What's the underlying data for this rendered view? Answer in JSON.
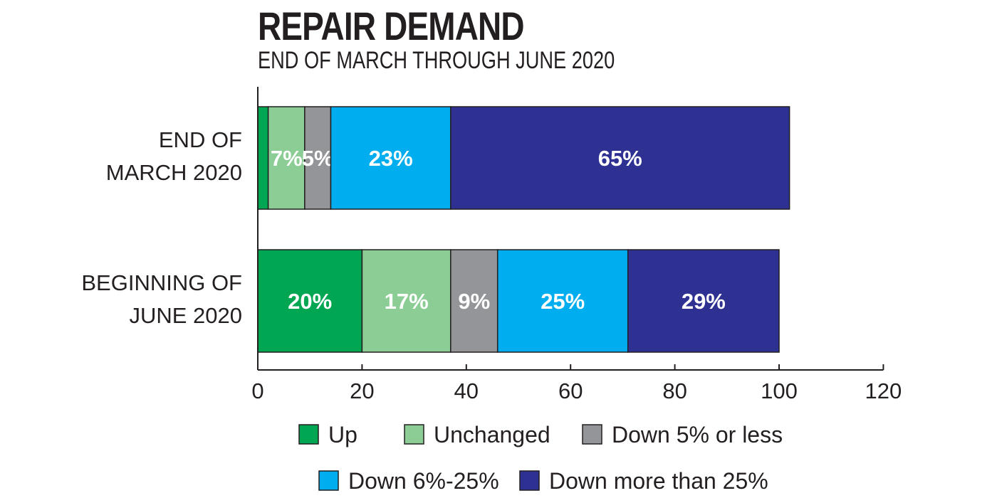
{
  "chart_data": {
    "type": "bar",
    "orientation": "horizontal",
    "stacked": true,
    "title": "REPAIR DEMAND",
    "subtitle": "END OF MARCH THROUGH JUNE 2020",
    "categories": [
      [
        "END OF",
        "MARCH 2020"
      ],
      [
        "BEGINNING OF",
        "JUNE 2020"
      ]
    ],
    "series": [
      {
        "name": "Up",
        "color": "#00a651",
        "values": [
          2,
          20
        ],
        "labels": [
          "",
          "20%"
        ]
      },
      {
        "name": "Unchanged",
        "color": "#8ccd96",
        "values": [
          7,
          17
        ],
        "labels": [
          "7%",
          "17%"
        ]
      },
      {
        "name": "Down 5% or less",
        "color": "#939598",
        "values": [
          5,
          9
        ],
        "labels": [
          "5%",
          "9%"
        ]
      },
      {
        "name": "Down 6%-25%",
        "color": "#00aeef",
        "values": [
          23,
          25
        ],
        "labels": [
          "23%",
          "25%"
        ]
      },
      {
        "name": "Down more than 25%",
        "color": "#2e3192",
        "values": [
          65,
          29
        ],
        "labels": [
          "65%",
          "29%"
        ]
      }
    ],
    "xlim": [
      0,
      120
    ],
    "xticks": [
      "0",
      "20",
      "40",
      "60",
      "80",
      "100",
      "120"
    ],
    "grid": false,
    "legend_position": "bottom"
  }
}
